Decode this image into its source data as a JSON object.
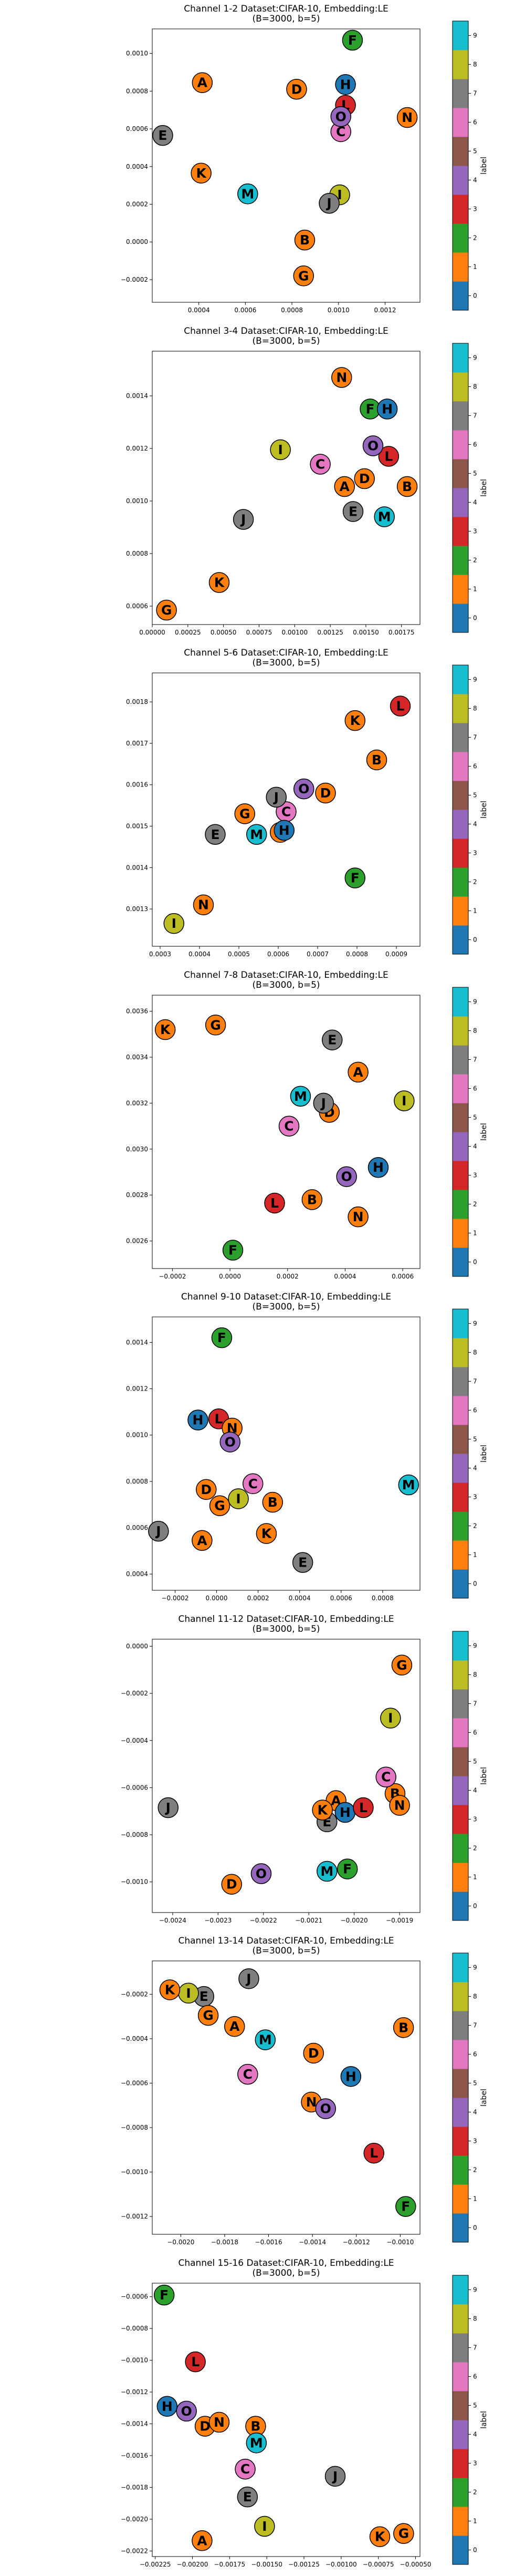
{
  "colorbar": {
    "label": "label",
    "ticks": [
      "0",
      "1",
      "2",
      "3",
      "4",
      "5",
      "6",
      "7",
      "8",
      "9"
    ],
    "colors": [
      "#1f77b4",
      "#ff7f0e",
      "#2ca02c",
      "#d62728",
      "#9467bd",
      "#8c564b",
      "#e377c2",
      "#7f7f7f",
      "#bcbd22",
      "#17becf"
    ]
  },
  "letter_colors": {
    "A": "#ff7f0e",
    "B": "#ff7f0e",
    "C": "#e377c2",
    "D": "#ff7f0e",
    "E": "#7f7f7f",
    "F": "#2ca02c",
    "G": "#ff7f0e",
    "H": "#1f77b4",
    "I": "#bcbd22",
    "J": "#7f7f7f",
    "K": "#ff7f0e",
    "L": "#d62728",
    "M": "#17becf",
    "N": "#ff7f0e",
    "O": "#9467bd"
  },
  "chart_data": [
    {
      "type": "scatter",
      "title": [
        "Channel 1-2 Dataset:CIFAR-10, Embedding:LE",
        "(B=3000, b=5)"
      ],
      "xlim": [
        0.0002,
        0.00135
      ],
      "ylim": [
        -0.00032,
        0.00113
      ],
      "xticks": [
        "0.0004",
        "0.0006",
        "0.0008",
        "0.0010",
        "0.0012"
      ],
      "xtick_vals": [
        0.0004,
        0.0006,
        0.0008,
        0.001,
        0.0012
      ],
      "yticks": [
        "−0.0002",
        "0.0000",
        "0.0002",
        "0.0004",
        "0.0006",
        "0.0008",
        "0.0010"
      ],
      "ytick_vals": [
        -0.0002,
        0,
        0.0002,
        0.0004,
        0.0006,
        0.0008,
        0.001
      ],
      "points": [
        {
          "label": "A",
          "x": 0.000415,
          "y": 0.000845
        },
        {
          "label": "B",
          "x": 0.000855,
          "y": 1e-05
        },
        {
          "label": "C",
          "x": 0.00101,
          "y": 0.000585
        },
        {
          "label": "D",
          "x": 0.00082,
          "y": 0.00081
        },
        {
          "label": "E",
          "x": 0.000245,
          "y": 0.000565
        },
        {
          "label": "F",
          "x": 0.00106,
          "y": 0.00107
        },
        {
          "label": "G",
          "x": 0.00085,
          "y": -0.00018
        },
        {
          "label": "H",
          "x": 0.00103,
          "y": 0.000835
        },
        {
          "label": "I",
          "x": 0.001005,
          "y": 0.00025
        },
        {
          "label": "J",
          "x": 0.00096,
          "y": 0.000205
        },
        {
          "label": "K",
          "x": 0.00041,
          "y": 0.000365
        },
        {
          "label": "L",
          "x": 0.00103,
          "y": 0.000725
        },
        {
          "label": "M",
          "x": 0.00061,
          "y": 0.000255
        },
        {
          "label": "N",
          "x": 0.001295,
          "y": 0.00066
        },
        {
          "label": "O",
          "x": 0.00101,
          "y": 0.000665
        }
      ]
    },
    {
      "type": "scatter",
      "title": [
        "Channel 3-4 Dataset:CIFAR-10, Embedding:LE",
        "(B=3000, b=5)"
      ],
      "xlim": [
        0,
        0.00188
      ],
      "ylim": [
        0.00053,
        0.00157
      ],
      "xticks": [
        "0.00000",
        "0.00025",
        "0.00050",
        "0.00075",
        "0.00100",
        "0.00125",
        "0.00150",
        "0.00175"
      ],
      "xtick_vals": [
        0,
        0.00025,
        0.0005,
        0.00075,
        0.001,
        0.00125,
        0.0015,
        0.00175
      ],
      "yticks": [
        "0.0006",
        "0.0008",
        "0.0010",
        "0.0012",
        "0.0014"
      ],
      "ytick_vals": [
        0.0006,
        0.0008,
        0.001,
        0.0012,
        0.0014
      ],
      "points": [
        {
          "label": "A",
          "x": 0.00135,
          "y": 0.001055
        },
        {
          "label": "B",
          "x": 0.00179,
          "y": 0.001055
        },
        {
          "label": "C",
          "x": 0.00118,
          "y": 0.00114
        },
        {
          "label": "D",
          "x": 0.00149,
          "y": 0.001085
        },
        {
          "label": "E",
          "x": 0.00141,
          "y": 0.00096
        },
        {
          "label": "F",
          "x": 0.00153,
          "y": 0.00135
        },
        {
          "label": "G",
          "x": 0.0001,
          "y": 0.000585
        },
        {
          "label": "H",
          "x": 0.00165,
          "y": 0.00135
        },
        {
          "label": "I",
          "x": 0.0009,
          "y": 0.001195
        },
        {
          "label": "J",
          "x": 0.00064,
          "y": 0.00093
        },
        {
          "label": "K",
          "x": 0.00047,
          "y": 0.00069
        },
        {
          "label": "L",
          "x": 0.00166,
          "y": 0.00117
        },
        {
          "label": "M",
          "x": 0.00163,
          "y": 0.00094
        },
        {
          "label": "N",
          "x": 0.00133,
          "y": 0.00147
        },
        {
          "label": "O",
          "x": 0.00155,
          "y": 0.00121
        }
      ]
    },
    {
      "type": "scatter",
      "title": [
        "Channel 5-6 Dataset:CIFAR-10, Embedding:LE",
        "(B=3000, b=5)"
      ],
      "xlim": [
        0.00028,
        0.00096
      ],
      "ylim": [
        0.00121,
        0.00187
      ],
      "xticks": [
        "0.0003",
        "0.0004",
        "0.0005",
        "0.0006",
        "0.0007",
        "0.0008",
        "0.0009"
      ],
      "xtick_vals": [
        0.0003,
        0.0004,
        0.0005,
        0.0006,
        0.0007,
        0.0008,
        0.0009
      ],
      "yticks": [
        "0.0013",
        "0.0014",
        "0.0015",
        "0.0016",
        "0.0017",
        "0.0018"
      ],
      "ytick_vals": [
        0.0013,
        0.0014,
        0.0015,
        0.0016,
        0.0017,
        0.0018
      ],
      "points": [
        {
          "label": "A",
          "x": 0.000605,
          "y": 0.001485
        },
        {
          "label": "B",
          "x": 0.00085,
          "y": 0.00166
        },
        {
          "label": "C",
          "x": 0.00062,
          "y": 0.001535
        },
        {
          "label": "D",
          "x": 0.00072,
          "y": 0.00158
        },
        {
          "label": "E",
          "x": 0.00044,
          "y": 0.00148
        },
        {
          "label": "F",
          "x": 0.000795,
          "y": 0.001375
        },
        {
          "label": "G",
          "x": 0.000515,
          "y": 0.00153
        },
        {
          "label": "H",
          "x": 0.000615,
          "y": 0.00149
        },
        {
          "label": "I",
          "x": 0.000335,
          "y": 0.001265
        },
        {
          "label": "J",
          "x": 0.000595,
          "y": 0.00157
        },
        {
          "label": "K",
          "x": 0.000795,
          "y": 0.001755
        },
        {
          "label": "L",
          "x": 0.00091,
          "y": 0.00179
        },
        {
          "label": "M",
          "x": 0.000545,
          "y": 0.00148
        },
        {
          "label": "N",
          "x": 0.00041,
          "y": 0.00131
        },
        {
          "label": "O",
          "x": 0.000665,
          "y": 0.00159
        }
      ]
    },
    {
      "type": "scatter",
      "title": [
        "Channel 7-8 Dataset:CIFAR-10, Embedding:LE",
        "(B=3000, b=5)"
      ],
      "xlim": [
        -0.00027,
        0.00066
      ],
      "ylim": [
        0.00248,
        0.00367
      ],
      "xticks": [
        "−0.0002",
        "0.0000",
        "0.0002",
        "0.0004",
        "0.0006"
      ],
      "xtick_vals": [
        -0.0002,
        0,
        0.0002,
        0.0004,
        0.0006
      ],
      "yticks": [
        "0.0026",
        "0.0028",
        "0.0030",
        "0.0032",
        "0.0034",
        "0.0036"
      ],
      "ytick_vals": [
        0.0026,
        0.0028,
        0.003,
        0.0032,
        0.0034,
        0.0036
      ],
      "points": [
        {
          "label": "A",
          "x": 0.000445,
          "y": 0.003335
        },
        {
          "label": "B",
          "x": 0.000285,
          "y": 0.00278
        },
        {
          "label": "C",
          "x": 0.000205,
          "y": 0.0031
        },
        {
          "label": "D",
          "x": 0.000345,
          "y": 0.00316
        },
        {
          "label": "E",
          "x": 0.000355,
          "y": 0.003475
        },
        {
          "label": "F",
          "x": 1e-05,
          "y": 0.00256
        },
        {
          "label": "G",
          "x": -5e-05,
          "y": 0.00354
        },
        {
          "label": "H",
          "x": 0.000515,
          "y": 0.00292
        },
        {
          "label": "I",
          "x": 0.000605,
          "y": 0.00321
        },
        {
          "label": "J",
          "x": 0.000325,
          "y": 0.0032
        },
        {
          "label": "K",
          "x": -0.000225,
          "y": 0.00352
        },
        {
          "label": "L",
          "x": 0.000155,
          "y": 0.002765
        },
        {
          "label": "M",
          "x": 0.000245,
          "y": 0.00323
        },
        {
          "label": "N",
          "x": 0.000445,
          "y": 0.002705
        },
        {
          "label": "O",
          "x": 0.000405,
          "y": 0.00288
        }
      ]
    },
    {
      "type": "scatter",
      "title": [
        "Channel 9-10 Dataset:CIFAR-10, Embedding:LE",
        "(B=3000, b=5)"
      ],
      "xlim": [
        -0.00031,
        0.00098
      ],
      "ylim": [
        0.00033,
        0.00151
      ],
      "xticks": [
        "−0.0002",
        "0.0000",
        "0.0002",
        "0.0004",
        "0.0006",
        "0.0008"
      ],
      "xtick_vals": [
        -0.0002,
        0,
        0.0002,
        0.0004,
        0.0006,
        0.0008
      ],
      "yticks": [
        "0.0004",
        "0.0006",
        "0.0008",
        "0.0010",
        "0.0012",
        "0.0014"
      ],
      "ytick_vals": [
        0.0004,
        0.0006,
        0.0008,
        0.001,
        0.0012,
        0.0014
      ],
      "points": [
        {
          "label": "A",
          "x": -7e-05,
          "y": 0.000545
        },
        {
          "label": "B",
          "x": 0.00027,
          "y": 0.00071
        },
        {
          "label": "C",
          "x": 0.000175,
          "y": 0.00079
        },
        {
          "label": "D",
          "x": -5e-05,
          "y": 0.000765
        },
        {
          "label": "E",
          "x": 0.000415,
          "y": 0.00045
        },
        {
          "label": "F",
          "x": 2.5e-05,
          "y": 0.00142
        },
        {
          "label": "G",
          "x": 1.5e-05,
          "y": 0.000695
        },
        {
          "label": "H",
          "x": -9e-05,
          "y": 0.001065
        },
        {
          "label": "I",
          "x": 0.000105,
          "y": 0.000725
        },
        {
          "label": "J",
          "x": -0.00028,
          "y": 0.000585
        },
        {
          "label": "K",
          "x": 0.00024,
          "y": 0.000575
        },
        {
          "label": "L",
          "x": 1e-05,
          "y": 0.00107
        },
        {
          "label": "M",
          "x": 0.000925,
          "y": 0.000785
        },
        {
          "label": "N",
          "x": 7.5e-05,
          "y": 0.00103
        },
        {
          "label": "O",
          "x": 6.5e-05,
          "y": 0.00097
        }
      ]
    },
    {
      "type": "scatter",
      "title": [
        "Channel 11-12 Dataset:CIFAR-10, Embedding:LE",
        "(B=3000, b=5)"
      ],
      "xlim": [
        -0.002445,
        -0.001855
      ],
      "ylim": [
        -0.00113,
        3e-05
      ],
      "xticks": [
        "−0.0024",
        "−0.0023",
        "−0.0022",
        "−0.0021",
        "−0.0020",
        "−0.0019"
      ],
      "xtick_vals": [
        -0.0024,
        -0.0023,
        -0.0022,
        -0.0021,
        -0.002,
        -0.0019
      ],
      "yticks": [
        "−0.0010",
        "−0.0008",
        "−0.0006",
        "−0.0004",
        "−0.0002",
        "0.0000"
      ],
      "ytick_vals": [
        -0.001,
        -0.0008,
        -0.0006,
        -0.0004,
        -0.0002,
        0
      ],
      "points": [
        {
          "label": "A",
          "x": -0.00204,
          "y": -0.000655
        },
        {
          "label": "B",
          "x": -0.00191,
          "y": -0.000625
        },
        {
          "label": "C",
          "x": -0.00193,
          "y": -0.000555
        },
        {
          "label": "D",
          "x": -0.00227,
          "y": -0.00101
        },
        {
          "label": "E",
          "x": -0.00206,
          "y": -0.000745
        },
        {
          "label": "F",
          "x": -0.002015,
          "y": -0.000945
        },
        {
          "label": "G",
          "x": -0.001895,
          "y": -8e-05
        },
        {
          "label": "H",
          "x": -0.00202,
          "y": -0.000705
        },
        {
          "label": "I",
          "x": -0.00192,
          "y": -0.000305
        },
        {
          "label": "J",
          "x": -0.00241,
          "y": -0.000685
        },
        {
          "label": "K",
          "x": -0.00207,
          "y": -0.000695
        },
        {
          "label": "L",
          "x": -0.00198,
          "y": -0.000685
        },
        {
          "label": "M",
          "x": -0.00206,
          "y": -0.000955
        },
        {
          "label": "N",
          "x": -0.0019,
          "y": -0.000675
        },
        {
          "label": "O",
          "x": -0.002205,
          "y": -0.000965
        }
      ]
    },
    {
      "type": "scatter",
      "title": [
        "Channel 13-14 Dataset:CIFAR-10, Embedding:LE",
        "(B=3000, b=5)"
      ],
      "xlim": [
        -0.00213,
        -0.00091
      ],
      "ylim": [
        -0.00128,
        -5e-05
      ],
      "xticks": [
        "−0.0020",
        "−0.0018",
        "−0.0016",
        "−0.0014",
        "−0.0012",
        "−0.0010"
      ],
      "xtick_vals": [
        -0.002,
        -0.0018,
        -0.0016,
        -0.0014,
        -0.0012,
        -0.001
      ],
      "yticks": [
        "−0.0012",
        "−0.0010",
        "−0.0008",
        "−0.0006",
        "−0.0004",
        "−0.0002"
      ],
      "ytick_vals": [
        -0.0012,
        -0.001,
        -0.0008,
        -0.0006,
        -0.0004,
        -0.0002
      ],
      "points": [
        {
          "label": "A",
          "x": -0.001755,
          "y": -0.000345
        },
        {
          "label": "B",
          "x": -0.000985,
          "y": -0.00035
        },
        {
          "label": "C",
          "x": -0.001695,
          "y": -0.00056
        },
        {
          "label": "D",
          "x": -0.001395,
          "y": -0.000465
        },
        {
          "label": "E",
          "x": -0.001895,
          "y": -0.00021
        },
        {
          "label": "F",
          "x": -0.000975,
          "y": -0.001155
        },
        {
          "label": "G",
          "x": -0.001875,
          "y": -0.000295
        },
        {
          "label": "H",
          "x": -0.001225,
          "y": -0.00057
        },
        {
          "label": "I",
          "x": -0.001965,
          "y": -0.000195
        },
        {
          "label": "J",
          "x": -0.00169,
          "y": -0.00013
        },
        {
          "label": "K",
          "x": -0.00205,
          "y": -0.00018
        },
        {
          "label": "L",
          "x": -0.00112,
          "y": -0.000915
        },
        {
          "label": "M",
          "x": -0.001615,
          "y": -0.000405
        },
        {
          "label": "N",
          "x": -0.001405,
          "y": -0.000685
        },
        {
          "label": "O",
          "x": -0.00134,
          "y": -0.000715
        }
      ]
    },
    {
      "type": "scatter",
      "title": [
        "Channel 15-16 Dataset:CIFAR-10, Embedding:LE",
        "(B=3000, b=5)"
      ],
      "xlim": [
        -0.00227,
        -0.00047
      ],
      "ylim": [
        -0.002235,
        -0.000515
      ],
      "xticks": [
        "−0.00225",
        "−0.00200",
        "−0.00175",
        "−0.00150",
        "−0.00125",
        "−0.00100",
        "−0.00075",
        "−0.00050"
      ],
      "xtick_vals": [
        -0.00225,
        -0.002,
        -0.00175,
        -0.0015,
        -0.00125,
        -0.001,
        -0.00075,
        -0.0005
      ],
      "yticks": [
        "−0.0022",
        "−0.0020",
        "−0.0018",
        "−0.0016",
        "−0.0014",
        "−0.0012",
        "−0.0010",
        "−0.0008",
        "−0.0006"
      ],
      "ytick_vals": [
        -0.0022,
        -0.002,
        -0.0018,
        -0.0016,
        -0.0014,
        -0.0012,
        -0.001,
        -0.0008,
        -0.0006
      ],
      "points": [
        {
          "label": "A",
          "x": -0.001935,
          "y": -0.002135
        },
        {
          "label": "B",
          "x": -0.001575,
          "y": -0.001415
        },
        {
          "label": "C",
          "x": -0.001645,
          "y": -0.001685
        },
        {
          "label": "D",
          "x": -0.001915,
          "y": -0.001415
        },
        {
          "label": "E",
          "x": -0.00163,
          "y": -0.00186
        },
        {
          "label": "F",
          "x": -0.00219,
          "y": -0.00059
        },
        {
          "label": "G",
          "x": -0.00058,
          "y": -0.00209
        },
        {
          "label": "H",
          "x": -0.00217,
          "y": -0.00129
        },
        {
          "label": "I",
          "x": -0.001515,
          "y": -0.002045
        },
        {
          "label": "J",
          "x": -0.00104,
          "y": -0.00173
        },
        {
          "label": "K",
          "x": -0.00074,
          "y": -0.00211
        },
        {
          "label": "L",
          "x": -0.00198,
          "y": -0.00101
        },
        {
          "label": "M",
          "x": -0.00157,
          "y": -0.00152
        },
        {
          "label": "N",
          "x": -0.00182,
          "y": -0.00139
        },
        {
          "label": "O",
          "x": -0.00204,
          "y": -0.00132
        }
      ]
    }
  ]
}
